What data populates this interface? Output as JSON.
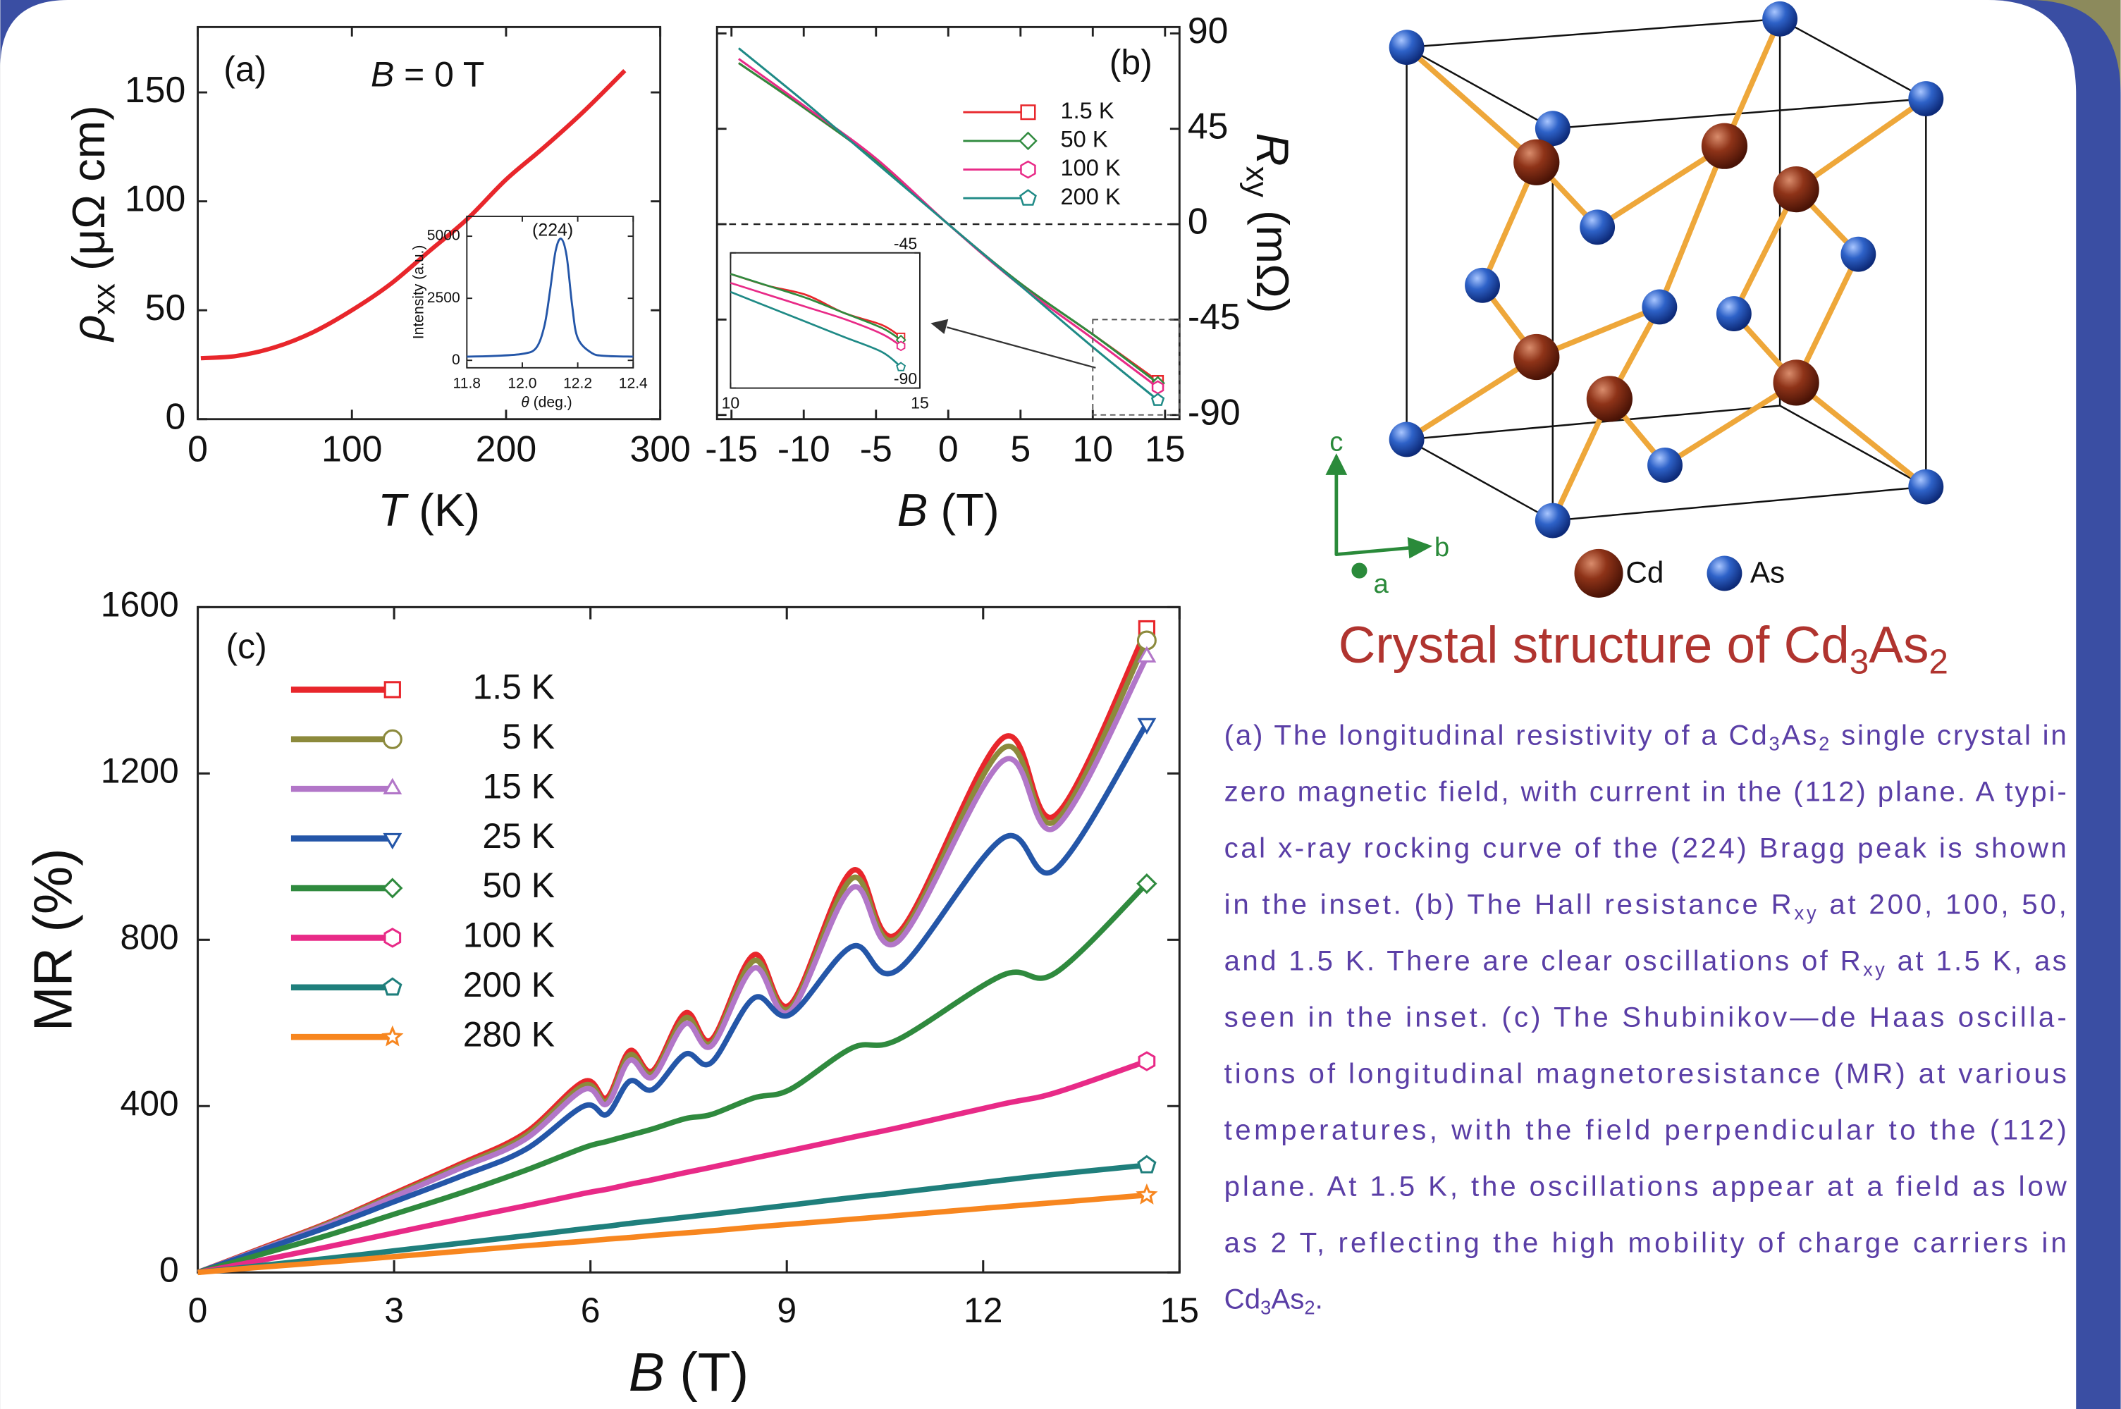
{
  "chart_data": [
    {
      "type": "line",
      "x": [
        2,
        25,
        50,
        75,
        100,
        125,
        150,
        175,
        200,
        225,
        250,
        277
      ],
      "values": [
        28,
        29,
        33,
        40,
        50,
        62,
        77,
        92,
        110,
        125,
        141,
        160
      ],
      "color": "#e8262b",
      "xlim": [
        0,
        300
      ],
      "ylim": [
        0,
        180
      ],
      "xticks": [
        0,
        100,
        200,
        300
      ],
      "yticks": [
        0,
        50,
        100,
        150
      ],
      "xlabel": [
        {
          "i": "T"
        },
        " (K)"
      ],
      "ylabel": [
        {
          "i": "ρ"
        },
        {
          "sub": "xx"
        },
        " (μΩ cm)"
      ],
      "annotations": [
        "(a)",
        [
          {
            "i": "B"
          },
          " = 0 T"
        ]
      ]
    },
    {
      "type": "line",
      "title": "(224)",
      "x": [
        11.8,
        11.9,
        12.0,
        12.05,
        12.08,
        12.1,
        12.12,
        12.14,
        12.16,
        12.18,
        12.2,
        12.25,
        12.3,
        12.4
      ],
      "values": [
        150,
        180,
        260,
        500,
        1400,
        2800,
        4400,
        4900,
        4200,
        2200,
        900,
        300,
        180,
        150
      ],
      "color": "#2456a8",
      "xlim": [
        11.8,
        12.4
      ],
      "ylim": [
        -300,
        5800
      ],
      "xticks": [
        11.8,
        {
          "value": 12,
          "label": "12.0"
        },
        12.2,
        12.4
      ],
      "yticks": [
        0,
        2500,
        5000
      ],
      "xlabel": [
        {
          "i": "θ"
        },
        " (deg.)"
      ],
      "ylabel": "Intensity (a.u.)"
    },
    {
      "type": "line",
      "x": [
        -14.5,
        -10,
        -5,
        0,
        5,
        10,
        14.5
      ],
      "series": [
        {
          "name": "1.5 K",
          "color": "#e8262b",
          "marker": "square",
          "axis": "y2",
          "values": [
            76,
            55,
            30,
            0,
            -28,
            -52,
            -74
          ]
        },
        {
          "name": "50 K",
          "color": "#2f8a3e",
          "marker": "diamond",
          "axis": "y2",
          "values": [
            76,
            55,
            30,
            0,
            -28,
            -52,
            -75
          ]
        },
        {
          "name": "100 K",
          "color": "#e82a87",
          "marker": "hexagon",
          "axis": "y2",
          "values": [
            78,
            56,
            31,
            0,
            -29,
            -54,
            -77
          ]
        },
        {
          "name": "200 K",
          "color": "#1f8a86",
          "marker": "pentagon",
          "axis": "y2",
          "values": [
            83,
            58,
            29,
            0,
            -29,
            -58,
            -83
          ]
        }
      ],
      "xlim": [
        -16,
        16
      ],
      "y2lim": [
        -92,
        93
      ],
      "xticks": [
        -15,
        -10,
        -5,
        0,
        5,
        10,
        15
      ],
      "y2ticks": [
        90,
        45,
        0,
        -45,
        -90
      ],
      "zero_line": true,
      "xlabel": [
        {
          "i": "B"
        },
        " (T)"
      ],
      "y2label": [
        {
          "i": "R"
        },
        {
          "sub": "xy"
        },
        " (mΩ)"
      ],
      "annotations": [
        "(b)"
      ]
    },
    {
      "type": "line",
      "x": [
        10,
        11,
        12,
        13,
        14,
        14.5
      ],
      "series": [
        {
          "color": "#e8262b",
          "marker": "square",
          "axis": "y2",
          "values": [
            -52,
            -56,
            -59,
            -65,
            -69,
            -73
          ]
        },
        {
          "color": "#2f8a3e",
          "marker": "diamond",
          "axis": "y2",
          "values": [
            -52,
            -56,
            -60,
            -65,
            -70,
            -74
          ]
        },
        {
          "color": "#e82a87",
          "marker": "hexagon",
          "axis": "y2",
          "values": [
            -55,
            -59,
            -63,
            -67,
            -72,
            -76
          ]
        },
        {
          "color": "#1f8a86",
          "marker": "pentagon",
          "axis": "y2",
          "values": [
            -58,
            -63,
            -68,
            -73,
            -78,
            -83
          ]
        }
      ],
      "xlim": [
        10,
        15
      ],
      "y2lim": [
        -90,
        -45
      ],
      "xticks": [
        10,
        15
      ],
      "y2ticks": [
        -45,
        -90
      ]
    },
    {
      "type": "line",
      "x": [
        0,
        1,
        2,
        3,
        4,
        5,
        5.9,
        6.25,
        6.6,
        6.95,
        7.45,
        7.85,
        8.5,
        9.05,
        10.0,
        10.7,
        12.3,
        13.1,
        14.5
      ],
      "series": [
        {
          "name": "1.5 K",
          "color": "#e8262b",
          "marker": "square",
          "values": [
            0,
            60,
            120,
            190,
            260,
            335,
            459,
            420,
            533,
            485,
            624,
            560,
            764,
            644,
            966,
            816,
            1285,
            1099,
            1548
          ]
        },
        {
          "name": "5 K",
          "color": "#8c8a3c",
          "marker": "circle",
          "values": [
            0,
            58,
            118,
            186,
            255,
            328,
            450,
            412,
            523,
            478,
            612,
            552,
            750,
            636,
            948,
            806,
            1260,
            1085,
            1520
          ]
        },
        {
          "name": "15 K",
          "color": "#b276c8",
          "marker": "up",
          "values": [
            0,
            57,
            115,
            182,
            250,
            320,
            440,
            405,
            510,
            470,
            598,
            545,
            732,
            628,
            925,
            796,
            1230,
            1070,
            1480
          ]
        },
        {
          "name": "25 K",
          "color": "#2456a8",
          "marker": "down",
          "values": [
            0,
            55,
            110,
            170,
            230,
            295,
            400,
            380,
            460,
            440,
            525,
            505,
            660,
            620,
            784,
            728,
            1044,
            969,
            1320
          ]
        },
        {
          "name": "50 K",
          "color": "#2f8a3e",
          "marker": "diamond",
          "values": [
            0,
            45,
            90,
            140,
            190,
            245,
            300,
            315,
            330,
            345,
            370,
            380,
            420,
            440,
            540,
            560,
            715,
            720,
            935
          ]
        },
        {
          "name": "100 K",
          "color": "#e82a87",
          "marker": "hexagon",
          "values": [
            0,
            30,
            62,
            95,
            128,
            160,
            190,
            200,
            212,
            223,
            240,
            253,
            275,
            293,
            325,
            348,
            405,
            432,
            508
          ]
        },
        {
          "name": "200 K",
          "color": "#1f7f7c",
          "marker": "pentagon",
          "values": [
            0,
            17,
            34,
            52,
            70,
            88,
            105,
            111,
            118,
            124,
            133,
            140,
            152,
            162,
            180,
            192,
            222,
            236,
            258
          ]
        },
        {
          "name": "280 K",
          "color": "#f7861f",
          "marker": "star",
          "values": [
            0,
            13,
            25,
            38,
            51,
            64,
            75,
            80,
            84,
            89,
            95,
            100,
            109,
            116,
            128,
            137,
            158,
            168,
            186
          ]
        }
      ],
      "xlim": [
        0,
        15
      ],
      "ylim": [
        0,
        1600
      ],
      "xticks": [
        0,
        3,
        6,
        9,
        12,
        15
      ],
      "yticks": [
        0,
        400,
        800,
        1200,
        1600
      ],
      "xlabel": [
        {
          "i": "B"
        },
        " (T)"
      ],
      "ylabel": "MR (%)",
      "annotations": [
        "(c)"
      ]
    }
  ],
  "structure": {
    "title": [
      "Crystal structure of Cd",
      {
        "sub": "3"
      },
      "As",
      {
        "sub": "2"
      }
    ],
    "axes": [
      "c",
      "b",
      "a"
    ],
    "legend": [
      "Cd",
      "As"
    ]
  },
  "caption": [
    [
      "(a) The longitudinal resistivity of a Cd",
      {
        "sub": "3"
      },
      "As",
      {
        "sub": "2"
      },
      " single crystal in"
    ],
    [
      "zero magnetic field, with current in the (112) plane. A typi-"
    ],
    [
      "cal x-ray rocking curve of the (224) Bragg peak is shown"
    ],
    [
      "in the inset. (b) The Hall resistance R",
      {
        "sub": "xy"
      },
      " at 200, 100, 50,"
    ],
    [
      "and 1.5 K. There are clear oscillations of R",
      {
        "sub": "xy"
      },
      " at 1.5 K, as"
    ],
    [
      "seen in the inset. (c) The Shubinikov—de Haas oscilla-"
    ],
    [
      "tions of longitudinal magnetoresistance (MR) at various"
    ],
    [
      "temperatures, with the field perpendicular to the (112)"
    ],
    [
      "plane.  At 1.5 K, the oscillations appear at a field as low"
    ],
    [
      "as 2 T, reflecting the high mobility of charge carriers in"
    ],
    [
      "Cd",
      {
        "sub": "3"
      },
      "As",
      {
        "sub": "2"
      },
      "."
    ]
  ]
}
